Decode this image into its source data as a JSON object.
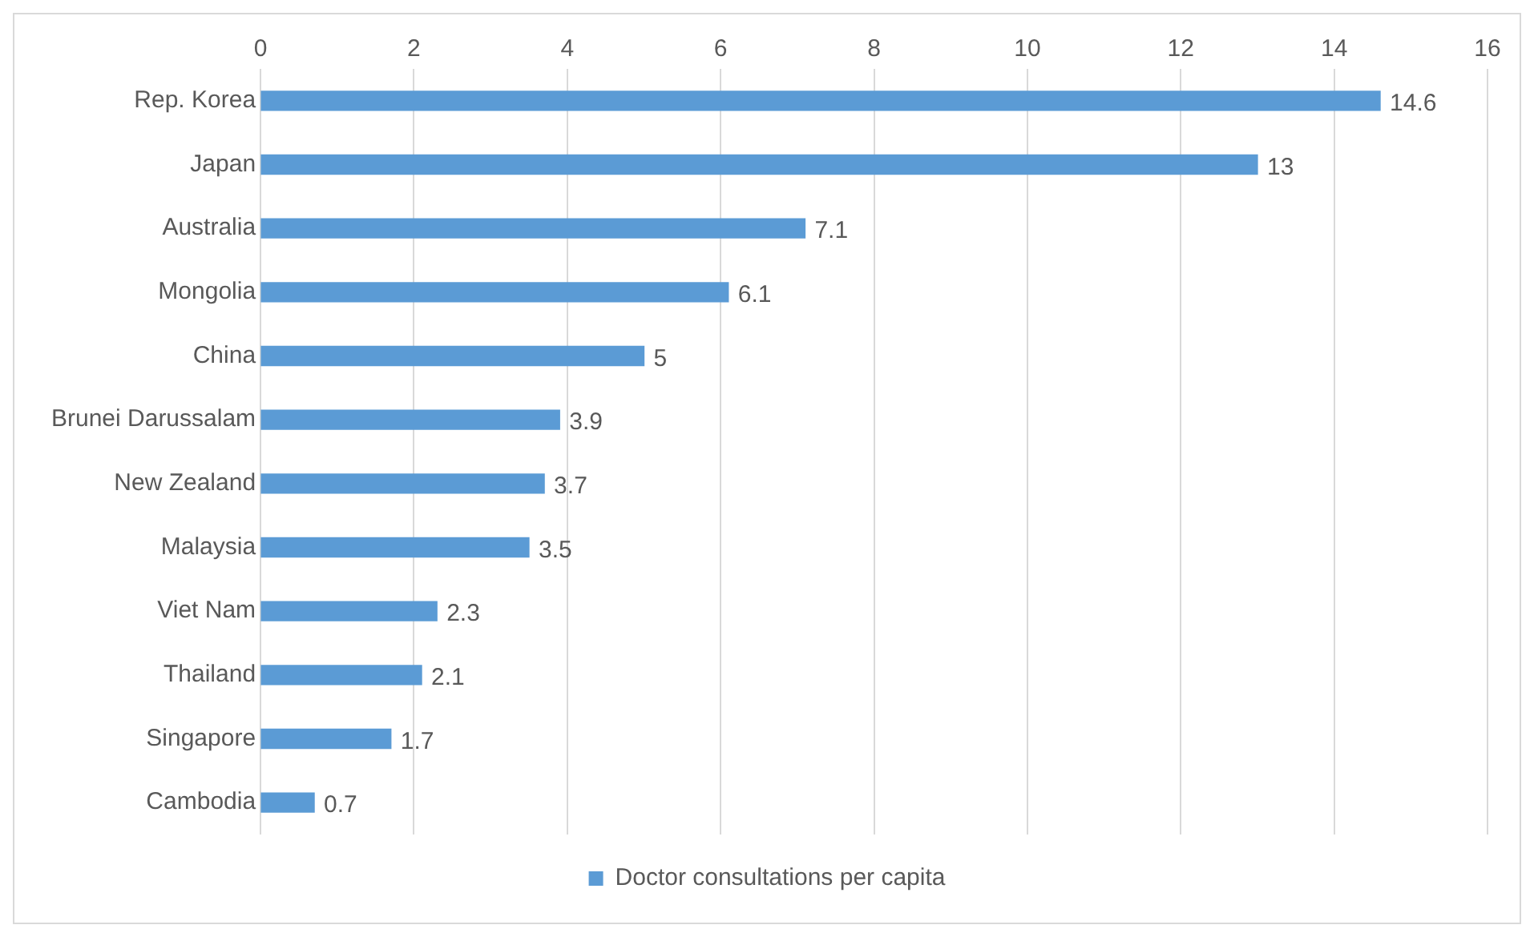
{
  "chart_data": {
    "type": "bar",
    "orientation": "horizontal",
    "categories": [
      "Rep. Korea",
      "Japan",
      "Australia",
      "Mongolia",
      "China",
      "Brunei Darussalam",
      "New Zealand",
      "Malaysia",
      "Viet Nam",
      "Thailand",
      "Singapore",
      "Cambodia"
    ],
    "series": [
      {
        "name": "Doctor consultations per capita",
        "color": "#5b9bd5",
        "values": [
          14.6,
          13,
          7.1,
          6.1,
          5,
          3.9,
          3.7,
          3.5,
          2.3,
          2.1,
          1.7,
          0.7
        ]
      }
    ],
    "xlim": [
      0,
      16
    ],
    "xticks": [
      0,
      2,
      4,
      6,
      8,
      10,
      12,
      14,
      16
    ],
    "grid": "x",
    "legend": "bottom",
    "data_labels": true
  }
}
